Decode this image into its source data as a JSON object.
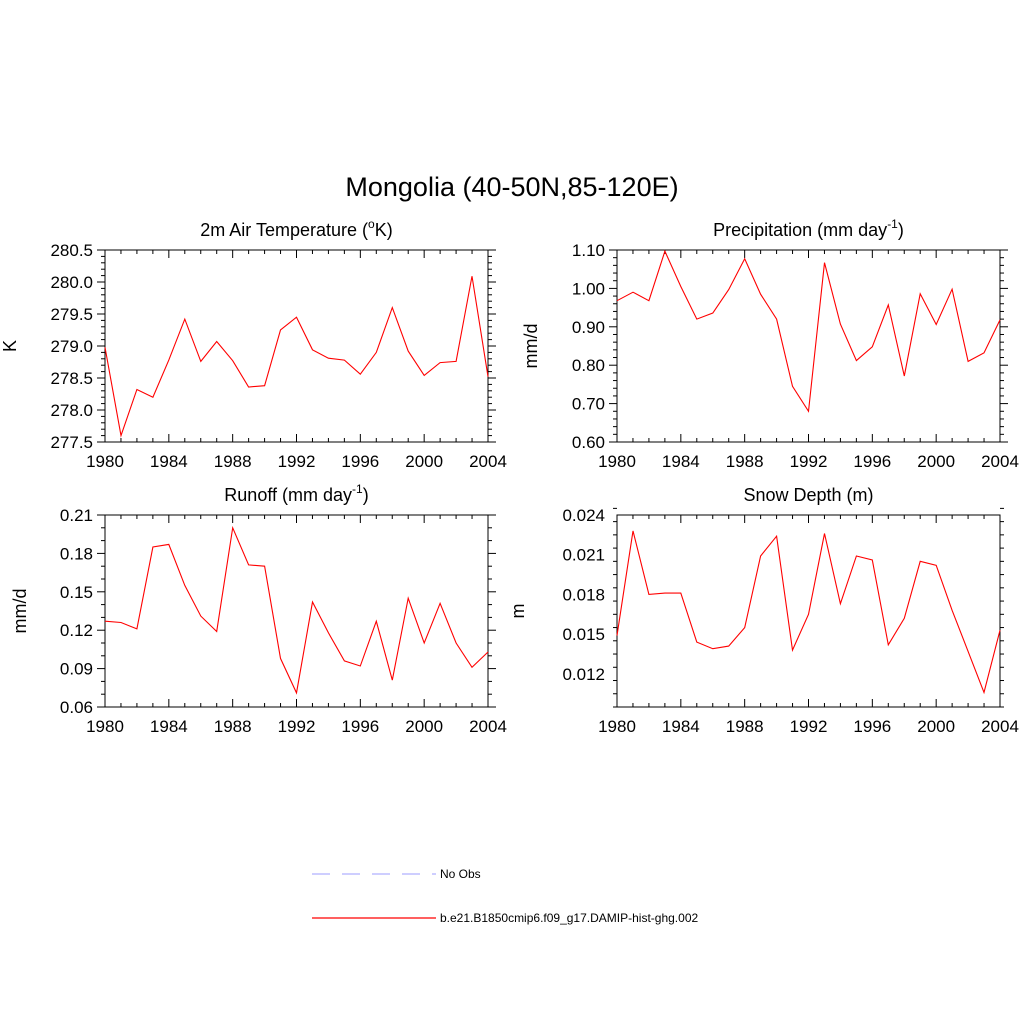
{
  "figure": {
    "title": "Mongolia (40-50N,85-120E)"
  },
  "chart_data": [
    {
      "type": "line",
      "title": "2m Air Temperature (",
      "title_sup": "o",
      "title_tail": "K)",
      "ylabel": "K",
      "xlim": [
        1980,
        2004
      ],
      "ylim": [
        277.5,
        280.5
      ],
      "xticks": [
        1980,
        1984,
        1988,
        1992,
        1996,
        2000,
        2004
      ],
      "xtick_labels": [
        "1980",
        "1984",
        "1988",
        "1992",
        "1996",
        "2000",
        "2004"
      ],
      "yticks": [
        277.5,
        278.0,
        278.5,
        279.0,
        279.5,
        280.0,
        280.5
      ],
      "ytick_labels": [
        "277.5",
        "278.0",
        "278.5",
        "279.0",
        "279.5",
        "280.0",
        "280.5"
      ],
      "yminor_step": 0.1,
      "x": [
        1980,
        1981,
        1982,
        1983,
        1984,
        1985,
        1986,
        1987,
        1988,
        1989,
        1990,
        1991,
        1992,
        1993,
        1994,
        1995,
        1996,
        1997,
        1998,
        1999,
        2000,
        2001,
        2002,
        2003,
        2004
      ],
      "series": [
        {
          "name": "b.e21.B1850cmip6.f09_g17.DAMIP-hist-ghg.002",
          "color": "#ff0000",
          "values": [
            278.98,
            277.6,
            278.32,
            278.2,
            278.78,
            279.42,
            278.76,
            279.07,
            278.77,
            278.36,
            278.38,
            279.25,
            279.45,
            278.94,
            278.81,
            278.78,
            278.56,
            278.9,
            279.6,
            278.92,
            278.54,
            278.74,
            278.76,
            280.09,
            278.52
          ]
        }
      ]
    },
    {
      "type": "line",
      "title": "Precipitation (mm day",
      "title_sup": "-1",
      "title_tail": ")",
      "ylabel": "mm/d",
      "xlim": [
        1980,
        2004
      ],
      "ylim": [
        0.6,
        1.1
      ],
      "xticks": [
        1980,
        1984,
        1988,
        1992,
        1996,
        2000,
        2004
      ],
      "xtick_labels": [
        "1980",
        "1984",
        "1988",
        "1992",
        "1996",
        "2000",
        "2004"
      ],
      "yticks": [
        0.6,
        0.7,
        0.8,
        0.9,
        1.0,
        1.1
      ],
      "ytick_labels": [
        "0.60",
        "0.70",
        "0.80",
        "0.90",
        "1.00",
        "1.10"
      ],
      "yminor_step": 0.02,
      "x": [
        1980,
        1981,
        1982,
        1983,
        1984,
        1985,
        1986,
        1987,
        1988,
        1989,
        1990,
        1991,
        1992,
        1993,
        1994,
        1995,
        1996,
        1997,
        1998,
        1999,
        2000,
        2001,
        2002,
        2003,
        2004
      ],
      "series": [
        {
          "name": "b.e21.B1850cmip6.f09_g17.DAMIP-hist-ghg.002",
          "color": "#ff0000",
          "values": [
            0.968,
            0.99,
            0.968,
            1.097,
            1.005,
            0.92,
            0.936,
            0.997,
            1.077,
            0.985,
            0.92,
            0.745,
            0.68,
            1.067,
            0.907,
            0.812,
            0.848,
            0.957,
            0.772,
            0.986,
            0.906,
            0.998,
            0.81,
            0.832,
            0.918
          ]
        }
      ]
    },
    {
      "type": "line",
      "title": "Runoff (mm day",
      "title_sup": "-1",
      "title_tail": ")",
      "ylabel": "mm/d",
      "xlim": [
        1980,
        2004
      ],
      "ylim": [
        0.06,
        0.21
      ],
      "xticks": [
        1980,
        1984,
        1988,
        1992,
        1996,
        2000,
        2004
      ],
      "xtick_labels": [
        "1980",
        "1984",
        "1988",
        "1992",
        "1996",
        "2000",
        "2004"
      ],
      "yticks": [
        0.06,
        0.09,
        0.12,
        0.15,
        0.18,
        0.21
      ],
      "ytick_labels": [
        "0.06",
        "0.09",
        "0.12",
        "0.15",
        "0.18",
        "0.21"
      ],
      "yminor_step": 0.01,
      "x": [
        1980,
        1981,
        1982,
        1983,
        1984,
        1985,
        1986,
        1987,
        1988,
        1989,
        1990,
        1991,
        1992,
        1993,
        1994,
        1995,
        1996,
        1997,
        1998,
        1999,
        2000,
        2001,
        2002,
        2003,
        2004
      ],
      "series": [
        {
          "name": "b.e21.B1850cmip6.f09_g17.DAMIP-hist-ghg.002",
          "color": "#ff0000",
          "values": [
            0.127,
            0.126,
            0.121,
            0.185,
            0.187,
            0.155,
            0.131,
            0.119,
            0.2,
            0.171,
            0.17,
            0.098,
            0.071,
            0.142,
            0.118,
            0.096,
            0.092,
            0.127,
            0.081,
            0.145,
            0.11,
            0.141,
            0.11,
            0.091,
            0.103
          ]
        }
      ]
    },
    {
      "type": "line",
      "title": "Snow Depth (m)",
      "title_sup": "",
      "title_tail": "",
      "ylabel": "m",
      "xlim": [
        1980,
        2004
      ],
      "ylim": [
        0.0095,
        0.024
      ],
      "xticks": [
        1980,
        1984,
        1988,
        1992,
        1996,
        2000,
        2004
      ],
      "xtick_labels": [
        "1980",
        "1984",
        "1988",
        "1992",
        "1996",
        "2000",
        "2004"
      ],
      "yticks": [
        0.012,
        0.015,
        0.018,
        0.021,
        0.024
      ],
      "ytick_labels": [
        "0.012",
        "0.015",
        "0.018",
        "0.021",
        "0.024"
      ],
      "yminor_step": 0.001,
      "x": [
        1980,
        1981,
        1982,
        1983,
        1984,
        1985,
        1986,
        1987,
        1988,
        1989,
        1990,
        1991,
        1992,
        1993,
        1994,
        1995,
        1996,
        1997,
        1998,
        1999,
        2000,
        2001,
        2002,
        2003,
        2004
      ],
      "series": [
        {
          "name": "b.e21.B1850cmip6.f09_g17.DAMIP-hist-ghg.002",
          "color": "#ff0000",
          "values": [
            0.0149,
            0.0228,
            0.018,
            0.0181,
            0.0181,
            0.0144,
            0.0139,
            0.0141,
            0.0155,
            0.0209,
            0.0224,
            0.0138,
            0.0165,
            0.0226,
            0.0173,
            0.0209,
            0.0206,
            0.0142,
            0.0162,
            0.0205,
            0.0202,
            0.0168,
            0.0137,
            0.0106,
            0.0153
          ]
        }
      ]
    }
  ],
  "legend": {
    "items": [
      {
        "label": "No Obs",
        "color": "#b0b0ff",
        "style": "dashed"
      },
      {
        "label": "b.e21.B1850cmip6.f09_g17.DAMIP-hist-ghg.002",
        "color": "#ff0000",
        "style": "solid"
      }
    ]
  }
}
